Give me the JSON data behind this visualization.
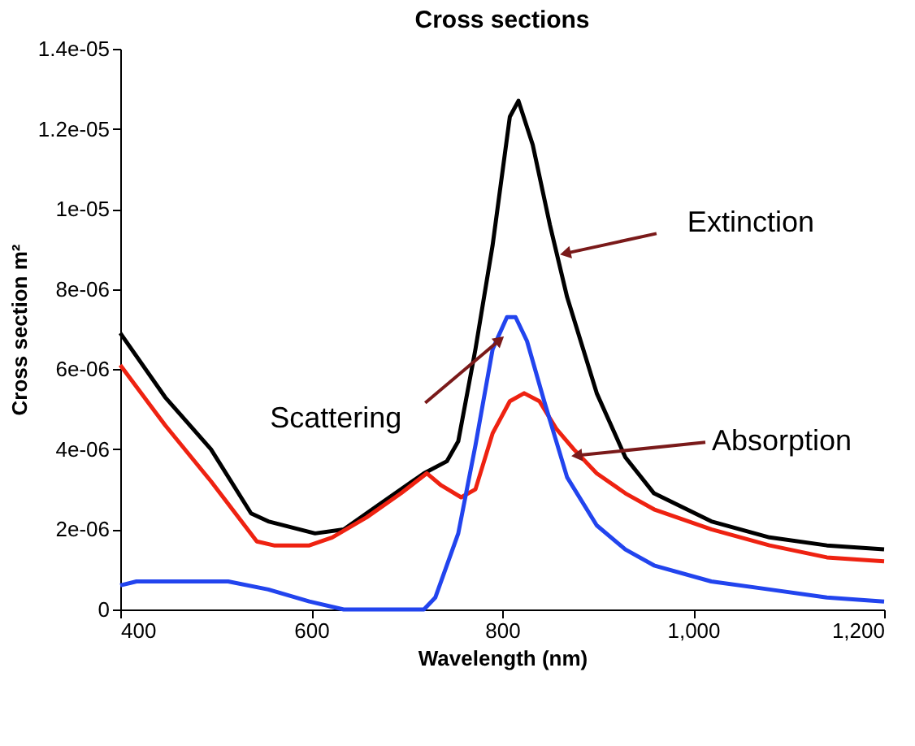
{
  "chart_data": {
    "type": "line",
    "title": "Cross sections",
    "xlabel": "Wavelength (nm)",
    "ylabel": "Cross section m²",
    "x": [
      400,
      447,
      495,
      537,
      555,
      604,
      634,
      670,
      718,
      742,
      754,
      772,
      790,
      808,
      817,
      832,
      850,
      868,
      899,
      929,
      959,
      1019,
      1080,
      1140,
      1200
    ],
    "series": [
      {
        "color": "#000000",
        "values": [
          6.9e-06,
          5.3e-06,
          4e-06,
          2.4e-06,
          2.2e-06,
          1.9e-06,
          2e-06,
          2.6e-06,
          3.4e-06,
          3.7e-06,
          4.2e-06,
          6.5e-06,
          9.1e-06,
          1.23e-05,
          1.27e-05,
          1.16e-05,
          9.6e-06,
          7.8e-06,
          5.4e-06,
          3.8e-06,
          2.9e-06,
          2.2e-06,
          1.8e-06,
          1.6e-06,
          1.5e-06
        ]
      },
      {
        "color": "#ee2211",
        "x": [
          400,
          447,
          495,
          543,
          561,
          598,
          622,
          658,
          694,
          721,
          736,
          757,
          772,
          790,
          808,
          823,
          839,
          857,
          875,
          899,
          929,
          959,
          1019,
          1080,
          1140,
          1200
        ],
        "values": [
          6.1e-06,
          4.6e-06,
          3.2e-06,
          1.7e-06,
          1.6e-06,
          1.6e-06,
          1.8e-06,
          2.3e-06,
          2.9e-06,
          3.4e-06,
          3.1e-06,
          2.8e-06,
          3e-06,
          4.4e-06,
          5.2e-06,
          5.4e-06,
          5.2e-06,
          4.5e-06,
          4e-06,
          3.4e-06,
          2.9e-06,
          2.5e-06,
          2e-06,
          1.6e-06,
          1.3e-06,
          1.2e-06
        ]
      },
      {
        "color": "#2244ee",
        "x": [
          400,
          417,
          465,
          513,
          555,
          598,
          634,
          658,
          718,
          730,
          754,
          772,
          790,
          805,
          814,
          826,
          844,
          868,
          899,
          929,
          959,
          1019,
          1080,
          1140,
          1200
        ],
        "values": [
          6e-07,
          7e-07,
          7e-07,
          7e-07,
          5e-07,
          2e-07,
          0,
          0,
          0,
          3e-07,
          1.9e-06,
          4.1e-06,
          6.5e-06,
          7.3e-06,
          7.3e-06,
          6.7e-06,
          5.2e-06,
          3.3e-06,
          2.1e-06,
          1.5e-06,
          1.1e-06,
          7e-07,
          5e-07,
          3e-07,
          2e-07
        ]
      }
    ],
    "xlim": [
      400,
      1200
    ],
    "xticks": [
      400,
      600,
      800,
      {
        "value": 1000,
        "label": "1,000"
      },
      {
        "value": 1200,
        "label": "1,200"
      }
    ],
    "ylim": [
      0,
      1.4e-05
    ],
    "yticks": [
      0,
      {
        "value": 2e-06,
        "label": "2e-06"
      },
      {
        "value": 4e-06,
        "label": "4e-06"
      },
      {
        "value": 6e-06,
        "label": "6e-06"
      },
      {
        "value": 8e-06,
        "label": "8e-06"
      },
      {
        "value": 1e-05,
        "label": "1e-05"
      },
      {
        "value": 1.2e-05,
        "label": "1.2e-05"
      },
      {
        "value": 1.4e-05,
        "label": "1.4e-05"
      }
    ],
    "annotations": [
      {
        "text": "Extinction",
        "x": 868,
        "y": 8.9e-06
      },
      {
        "text": "Scattering",
        "x": 796,
        "y": 6.7e-06
      },
      {
        "text": "Absorption",
        "x": 880,
        "y": 3.85e-06
      }
    ],
    "grid": false,
    "marker": "none",
    "line_style": "solid"
  }
}
